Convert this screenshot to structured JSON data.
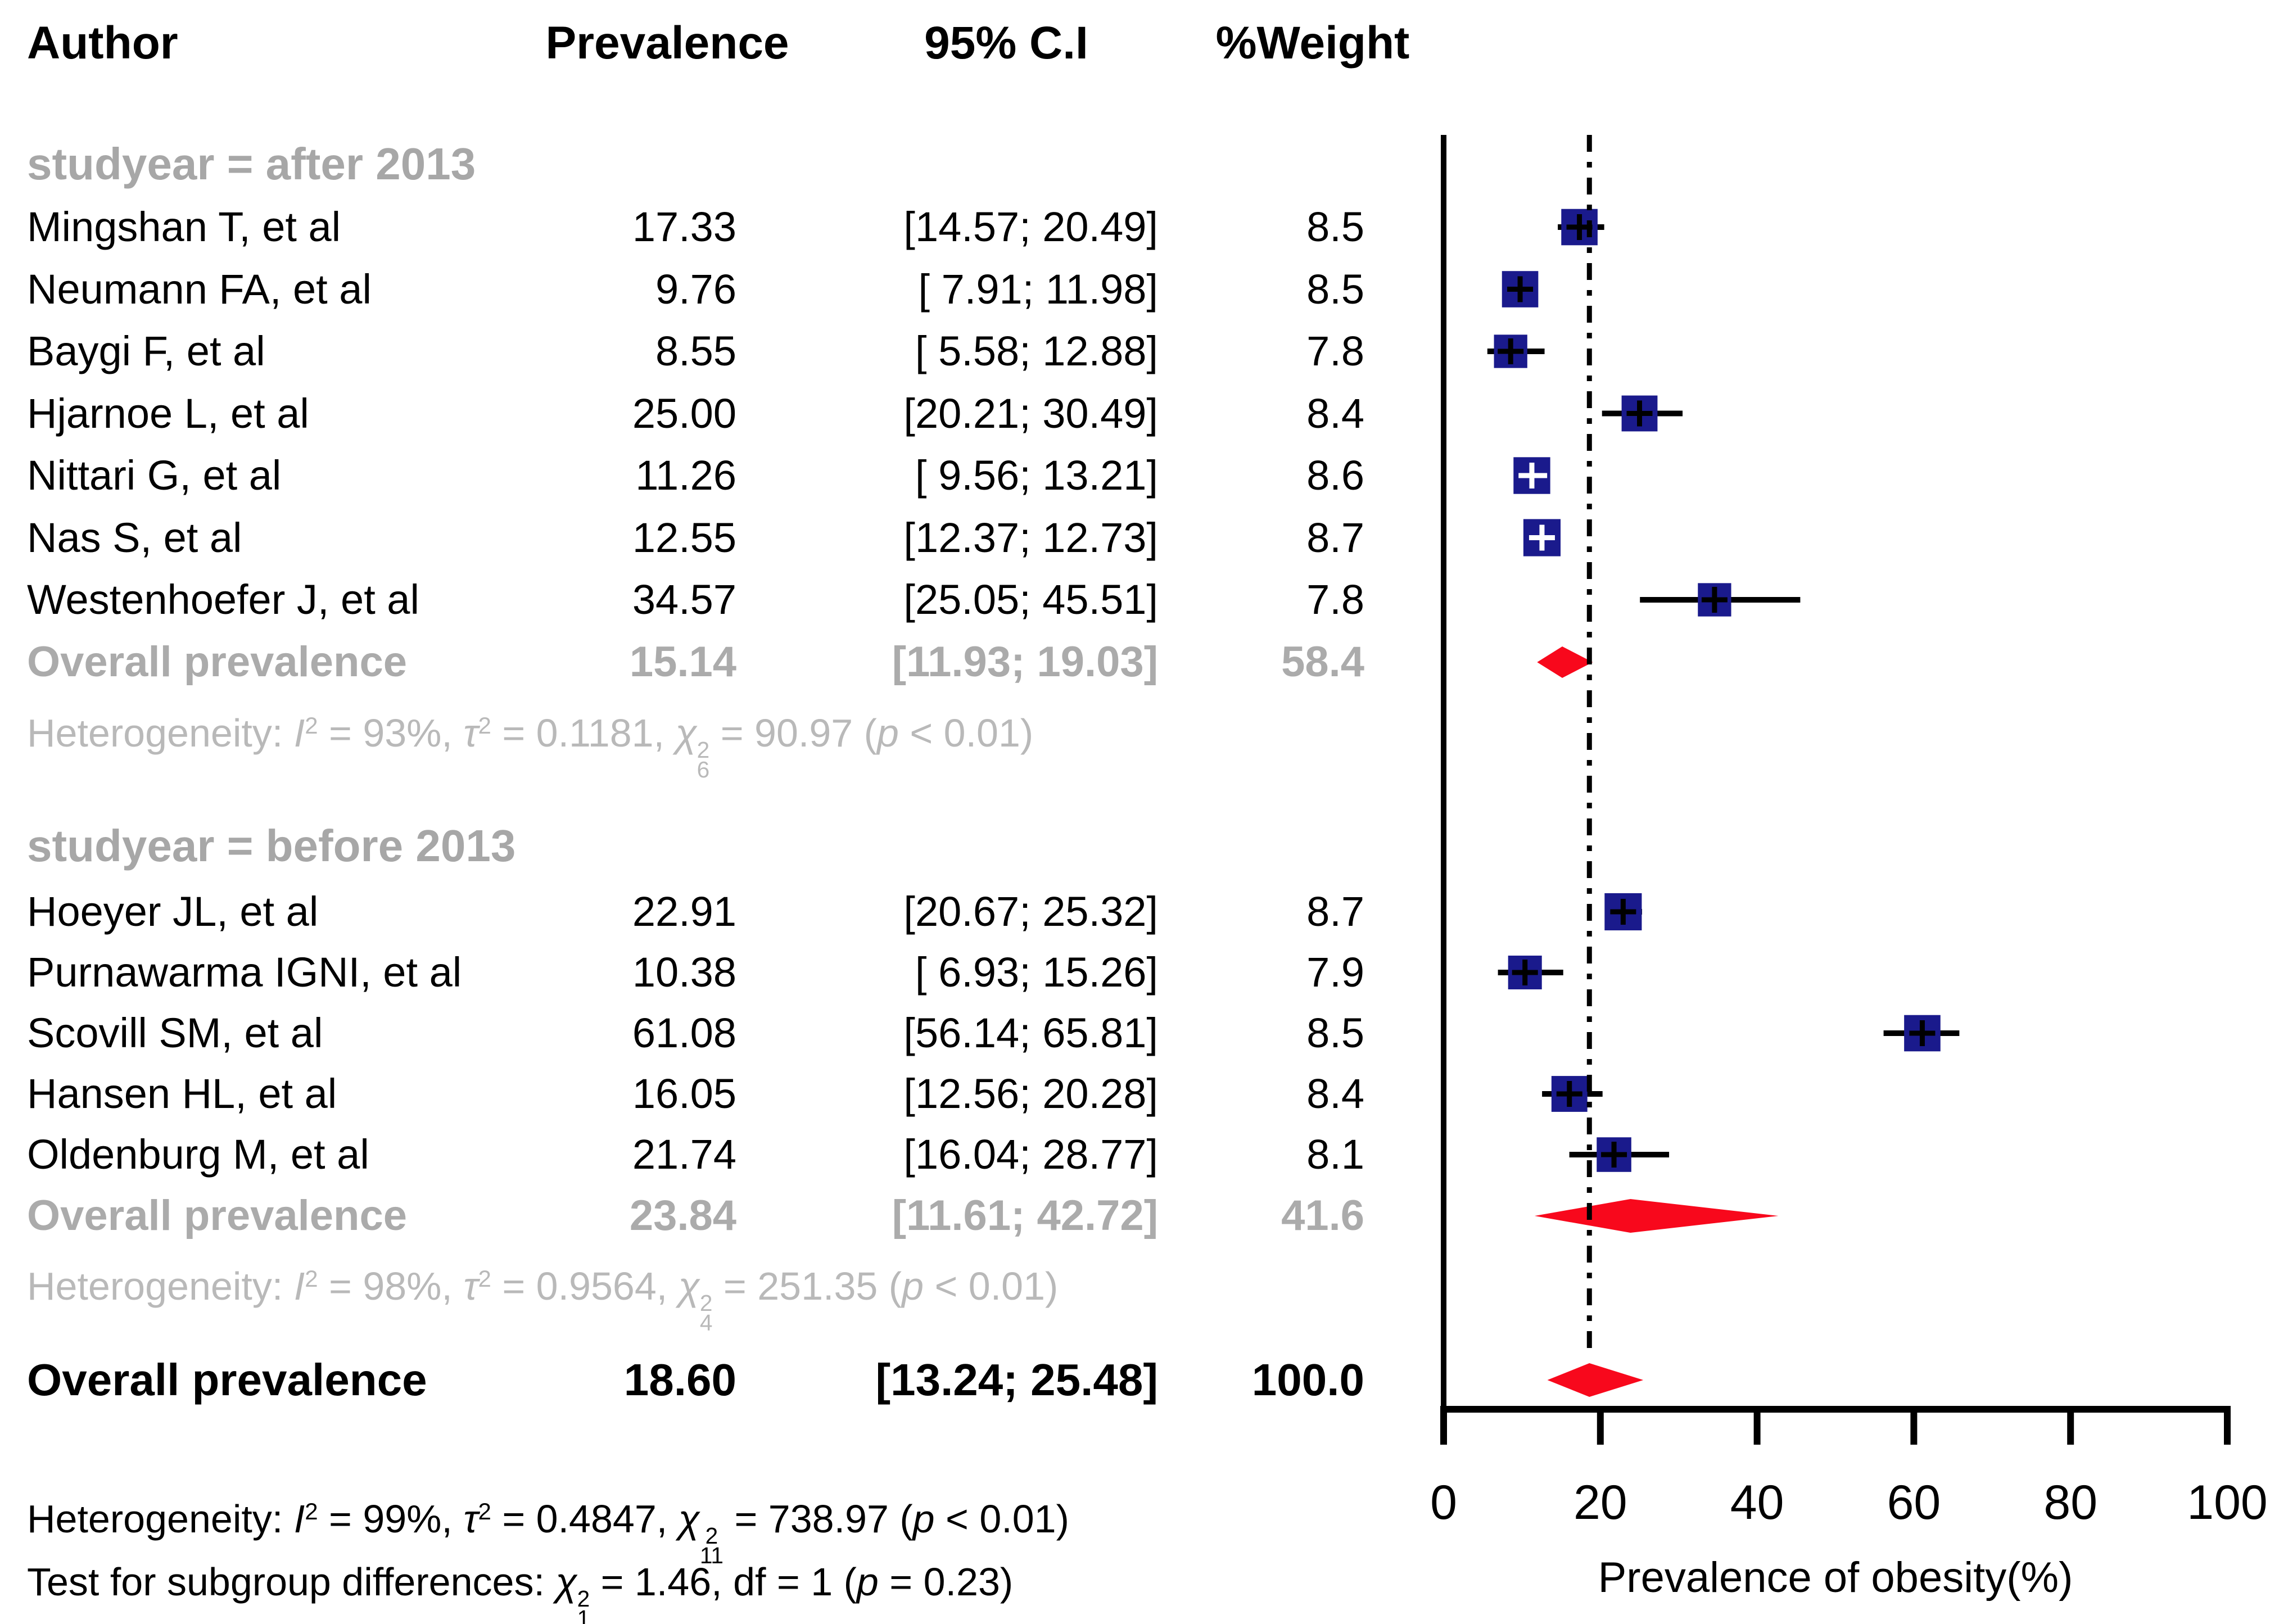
{
  "columns": {
    "author": "Author",
    "prevalence": "Prevalence",
    "ci": "95% C.I",
    "weight": "%Weight"
  },
  "chart_data": {
    "type": "scatter",
    "subtype": "forest_plot",
    "xlabel": "Prevalence of obesity(%)",
    "xlim": [
      0,
      100
    ],
    "xticks": [
      0,
      20,
      40,
      60,
      80,
      100
    ],
    "reference_line": 18.6,
    "grid": false,
    "groups": [
      {
        "label": "studyear = after 2013",
        "studies": [
          {
            "author": "Mingshan T, et al",
            "value": 17.33,
            "lo": 14.57,
            "hi": 20.49,
            "weight": 8.5,
            "prevalence": "17.33",
            "ci": "[14.57; 20.49]",
            "weight_label": "8.5"
          },
          {
            "author": "Neumann FA, et al",
            "value": 9.76,
            "lo": 7.91,
            "hi": 11.98,
            "weight": 8.5,
            "prevalence": "9.76",
            "ci": "[ 7.91; 11.98]",
            "weight_label": "8.5"
          },
          {
            "author": "Baygi F, et al",
            "value": 8.55,
            "lo": 5.58,
            "hi": 12.88,
            "weight": 7.8,
            "prevalence": "8.55",
            "ci": "[ 5.58; 12.88]",
            "weight_label": "7.8"
          },
          {
            "author": "Hjarnoe L, et al",
            "value": 25.0,
            "lo": 20.21,
            "hi": 30.49,
            "weight": 8.4,
            "prevalence": "25.00",
            "ci": "[20.21; 30.49]",
            "weight_label": "8.4"
          },
          {
            "author": "Nittari G, et al",
            "value": 11.26,
            "lo": 9.56,
            "hi": 13.21,
            "weight": 8.6,
            "prevalence": "11.26",
            "ci": "[ 9.56; 13.21]",
            "weight_label": "8.6"
          },
          {
            "author": "Nas S, et al",
            "value": 12.55,
            "lo": 12.37,
            "hi": 12.73,
            "weight": 8.7,
            "prevalence": "12.55",
            "ci": "[12.37; 12.73]",
            "weight_label": "8.7"
          },
          {
            "author": "Westenhoefer J, et al",
            "value": 34.57,
            "lo": 25.05,
            "hi": 45.51,
            "weight": 7.8,
            "prevalence": "34.57",
            "ci": "[25.05; 45.51]",
            "weight_label": "7.8"
          }
        ],
        "overall": {
          "label": "Overall prevalence",
          "value": 15.14,
          "lo": 11.93,
          "hi": 19.03,
          "prevalence": "15.14",
          "ci": "[11.93; 19.03]",
          "weight_label": "58.4"
        },
        "heterogeneity": {
          "prefix": "Heterogeneity: ",
          "i2": "93%",
          "tau2": "0.1181",
          "chi_df": "6",
          "chi_value": "90.97",
          "p": "p < 0.01"
        }
      },
      {
        "label": "studyear = before 2013",
        "studies": [
          {
            "author": "Hoeyer JL, et al",
            "value": 22.91,
            "lo": 20.67,
            "hi": 25.32,
            "weight": 8.7,
            "prevalence": "22.91",
            "ci": "[20.67; 25.32]",
            "weight_label": "8.7"
          },
          {
            "author": "Purnawarma IGNI, et al",
            "value": 10.38,
            "lo": 6.93,
            "hi": 15.26,
            "weight": 7.9,
            "prevalence": "10.38",
            "ci": "[ 6.93; 15.26]",
            "weight_label": "7.9"
          },
          {
            "author": "Scovill SM, et al",
            "value": 61.08,
            "lo": 56.14,
            "hi": 65.81,
            "weight": 8.5,
            "prevalence": "61.08",
            "ci": "[56.14; 65.81]",
            "weight_label": "8.5"
          },
          {
            "author": "Hansen HL, et al",
            "value": 16.05,
            "lo": 12.56,
            "hi": 20.28,
            "weight": 8.4,
            "prevalence": "16.05",
            "ci": "[12.56; 20.28]",
            "weight_label": "8.4"
          },
          {
            "author": "Oldenburg M, et al",
            "value": 21.74,
            "lo": 16.04,
            "hi": 28.77,
            "weight": 8.1,
            "prevalence": "21.74",
            "ci": "[16.04; 28.77]",
            "weight_label": "8.1"
          }
        ],
        "overall": {
          "label": "Overall prevalence",
          "value": 23.84,
          "lo": 11.61,
          "hi": 42.72,
          "prevalence": "23.84",
          "ci": "[11.61; 42.72]",
          "weight_label": "41.6"
        },
        "heterogeneity": {
          "prefix": "Heterogeneity: ",
          "i2": "98%",
          "tau2": "0.9564",
          "chi_df": "4",
          "chi_value": "251.35",
          "p": "p < 0.01"
        }
      }
    ],
    "overall": {
      "label": "Overall prevalence",
      "value": 18.6,
      "lo": 13.24,
      "hi": 25.48,
      "prevalence": "18.60",
      "ci": "[13.24; 25.48]",
      "weight_label": "100.0"
    },
    "footer": {
      "heterogeneity": {
        "prefix": "Heterogeneity: ",
        "i2": "99%",
        "tau2": "0.4847",
        "chi_df": "11",
        "chi_value": "738.97",
        "p": "p < 0.01"
      },
      "subgroup_test": {
        "prefix": "Test for subgroup differences: ",
        "chi_df": "1",
        "chi_value": "1.46",
        "df": "df = 1",
        "p": "p = 0.23"
      }
    }
  },
  "colors": {
    "square": "#1A1A8C",
    "diamond": "#F8081C",
    "text": "#000000",
    "gray_bold": "#A7A7A7",
    "gray_light": "#B9B9B9",
    "line": "#000000"
  }
}
